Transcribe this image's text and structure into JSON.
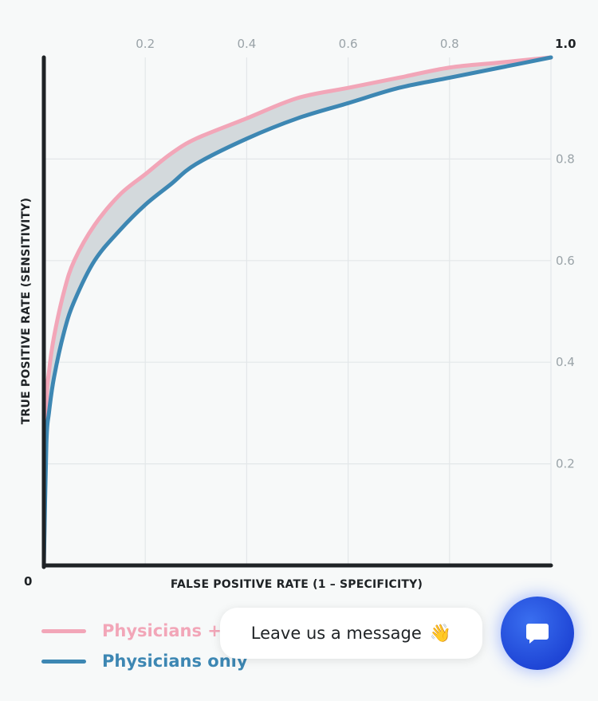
{
  "chart_data": {
    "type": "line",
    "xlabel": "FALSE POSITIVE RATE (1 – SPECIFICITY)",
    "ylabel": "TRUE POSITIVE RATE (SENSITIVITY)",
    "xlim": [
      0,
      1
    ],
    "ylim": [
      0,
      1
    ],
    "x_ticks": [
      "0.2",
      "0.4",
      "0.6",
      "0.8",
      "1.0"
    ],
    "y_ticks": [
      "0.2",
      "0.4",
      "0.6",
      "0.8"
    ],
    "origin_label": "0",
    "grid": true,
    "legend_position": "bottom-left",
    "shaded_area_between_series": true,
    "series": [
      {
        "name": "Physicians +",
        "color": "#f2a6b8",
        "x": [
          0,
          0.005,
          0.01,
          0.02,
          0.04,
          0.06,
          0.1,
          0.15,
          0.2,
          0.25,
          0.3,
          0.4,
          0.5,
          0.6,
          0.7,
          0.8,
          0.9,
          1.0
        ],
        "y": [
          0,
          0.31,
          0.38,
          0.45,
          0.54,
          0.6,
          0.67,
          0.73,
          0.77,
          0.81,
          0.84,
          0.88,
          0.92,
          0.94,
          0.96,
          0.98,
          0.99,
          1.0
        ]
      },
      {
        "name": "Physicians only",
        "color": "#3d87b3",
        "x": [
          0,
          0.005,
          0.01,
          0.02,
          0.04,
          0.06,
          0.1,
          0.15,
          0.2,
          0.25,
          0.3,
          0.4,
          0.5,
          0.6,
          0.7,
          0.8,
          0.9,
          1.0
        ],
        "y": [
          0,
          0.24,
          0.3,
          0.37,
          0.46,
          0.52,
          0.6,
          0.66,
          0.71,
          0.75,
          0.79,
          0.84,
          0.88,
          0.91,
          0.94,
          0.96,
          0.98,
          1.0
        ]
      }
    ]
  },
  "chat": {
    "message": "Leave us a message",
    "wave_icon": "waving-hand-icon",
    "button_icon": "chat-bubble-icon",
    "button_color": "#2350e0"
  }
}
